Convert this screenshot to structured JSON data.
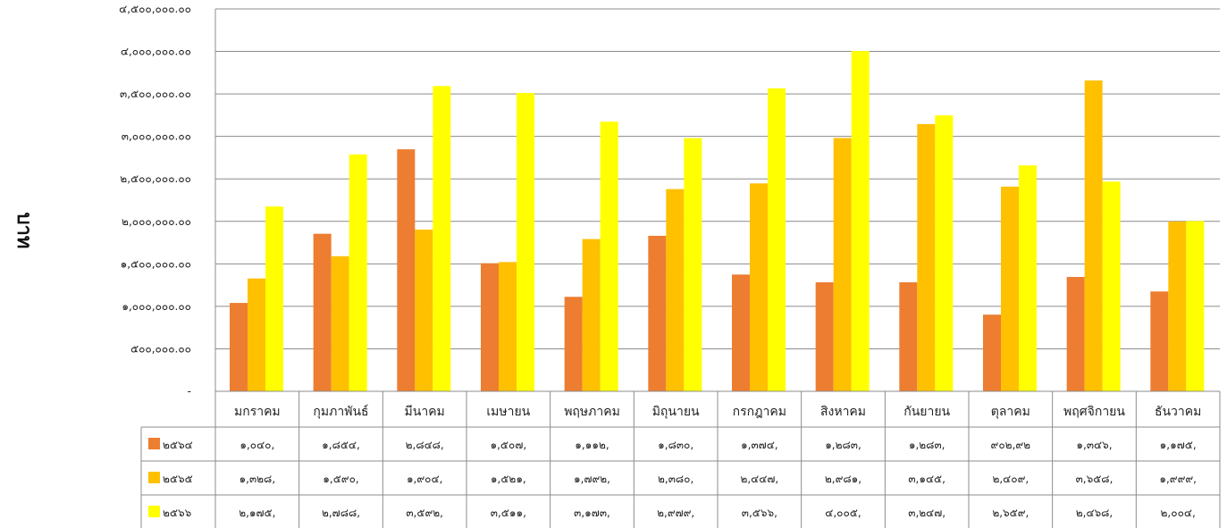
{
  "chart_data": {
    "type": "bar",
    "ylabel": "บาท",
    "ylim": [
      0,
      4500000
    ],
    "grid": true,
    "legend": "data-table",
    "y_ticks": [
      "-",
      "๕๐๐,๐๐๐.๐๐",
      "๑,๐๐๐,๐๐๐.๐๐",
      "๑,๕๐๐,๐๐๐.๐๐",
      "๒,๐๐๐,๐๐๐.๐๐",
      "๒,๕๐๐,๐๐๐.๐๐",
      "๓,๐๐๐,๐๐๐.๐๐",
      "๓,๕๐๐,๐๐๐.๐๐",
      "๔,๐๐๐,๐๐๐.๐๐",
      "๔,๕๐๐,๐๐๐.๐๐"
    ],
    "categories": [
      "มกราคม",
      "กุมภาพันธ์",
      "มีนาคม",
      "เมษายน",
      "พฤษภาคม",
      "มิถุนายน",
      "กรกฎาคม",
      "สิงหาคม",
      "กันยายน",
      "ตุลาคม",
      "พฤศจิกายน",
      "ธันวาคม"
    ],
    "series": [
      {
        "name": "๒๕๖๔",
        "color": "#ED7D31",
        "values": [
          1040000,
          1854000,
          2848000,
          1507000,
          1112000,
          1830000,
          1374000,
          1283000,
          1283000,
          902000,
          1346000,
          1175000
        ],
        "cells": [
          "๑,๐๔๐,",
          "๑,๘๕๔,",
          "๒,๘๔๘,",
          "๑,๕๐๗,",
          "๑,๑๑๒,",
          "๑,๘๓๐,",
          "๑,๓๗๔,",
          "๑,๒๘๓,",
          "๑,๒๘๓,",
          "๙๐๒,๙๒",
          "๑,๓๔๖,",
          "๑,๑๗๕,"
        ]
      },
      {
        "name": "๒๕๖๕",
        "color": "#FFC000",
        "values": [
          1328000,
          1590000,
          1904000,
          1521000,
          1792000,
          2380000,
          2447000,
          2981000,
          3145000,
          2409000,
          3658000,
          1999000
        ],
        "cells": [
          "๑,๓๒๘,",
          "๑,๕๙๐,",
          "๑,๙๐๔,",
          "๑,๕๒๑,",
          "๑,๗๙๒,",
          "๒,๓๘๐,",
          "๒,๔๔๗,",
          "๒,๙๘๑,",
          "๓,๑๔๕,",
          "๒,๔๐๙,",
          "๓,๖๕๘,",
          "๑,๙๙๙,"
        ]
      },
      {
        "name": "๒๕๖๖",
        "color": "#FFFF00",
        "values": [
          2175000,
          2788000,
          3592000,
          3511000,
          3173000,
          2979000,
          3566000,
          4005000,
          3247000,
          2659000,
          2468000,
          2004000
        ],
        "cells": [
          "๒,๑๗๕,",
          "๒,๗๘๘,",
          "๓,๕๙๒,",
          "๓,๕๑๑,",
          "๓,๑๗๓,",
          "๒,๙๗๙,",
          "๓,๕๖๖,",
          "๔,๐๐๕,",
          "๓,๒๔๗,",
          "๒,๖๕๙,",
          "๒,๔๖๘,",
          "๒,๐๐๔,"
        ]
      }
    ]
  }
}
